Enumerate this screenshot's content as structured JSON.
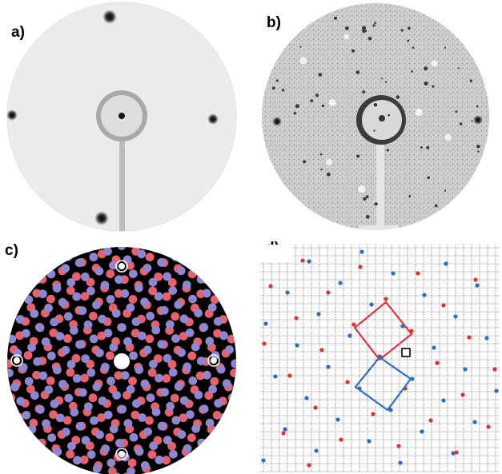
{
  "labels": {
    "a": "a)",
    "b": "b)",
    "c": "c)",
    "d": "d)"
  },
  "colors": {
    "leed_background": "#efefef",
    "leed_spot": "#111111",
    "sim_background": "#000000",
    "domain_red": "#e8606a",
    "domain_blue": "#8e86cf",
    "grid_red": "#e03030",
    "grid_blue": "#2a6ec6",
    "cell_red": "#e2313b",
    "cell_blue": "#2f6fc2"
  }
}
